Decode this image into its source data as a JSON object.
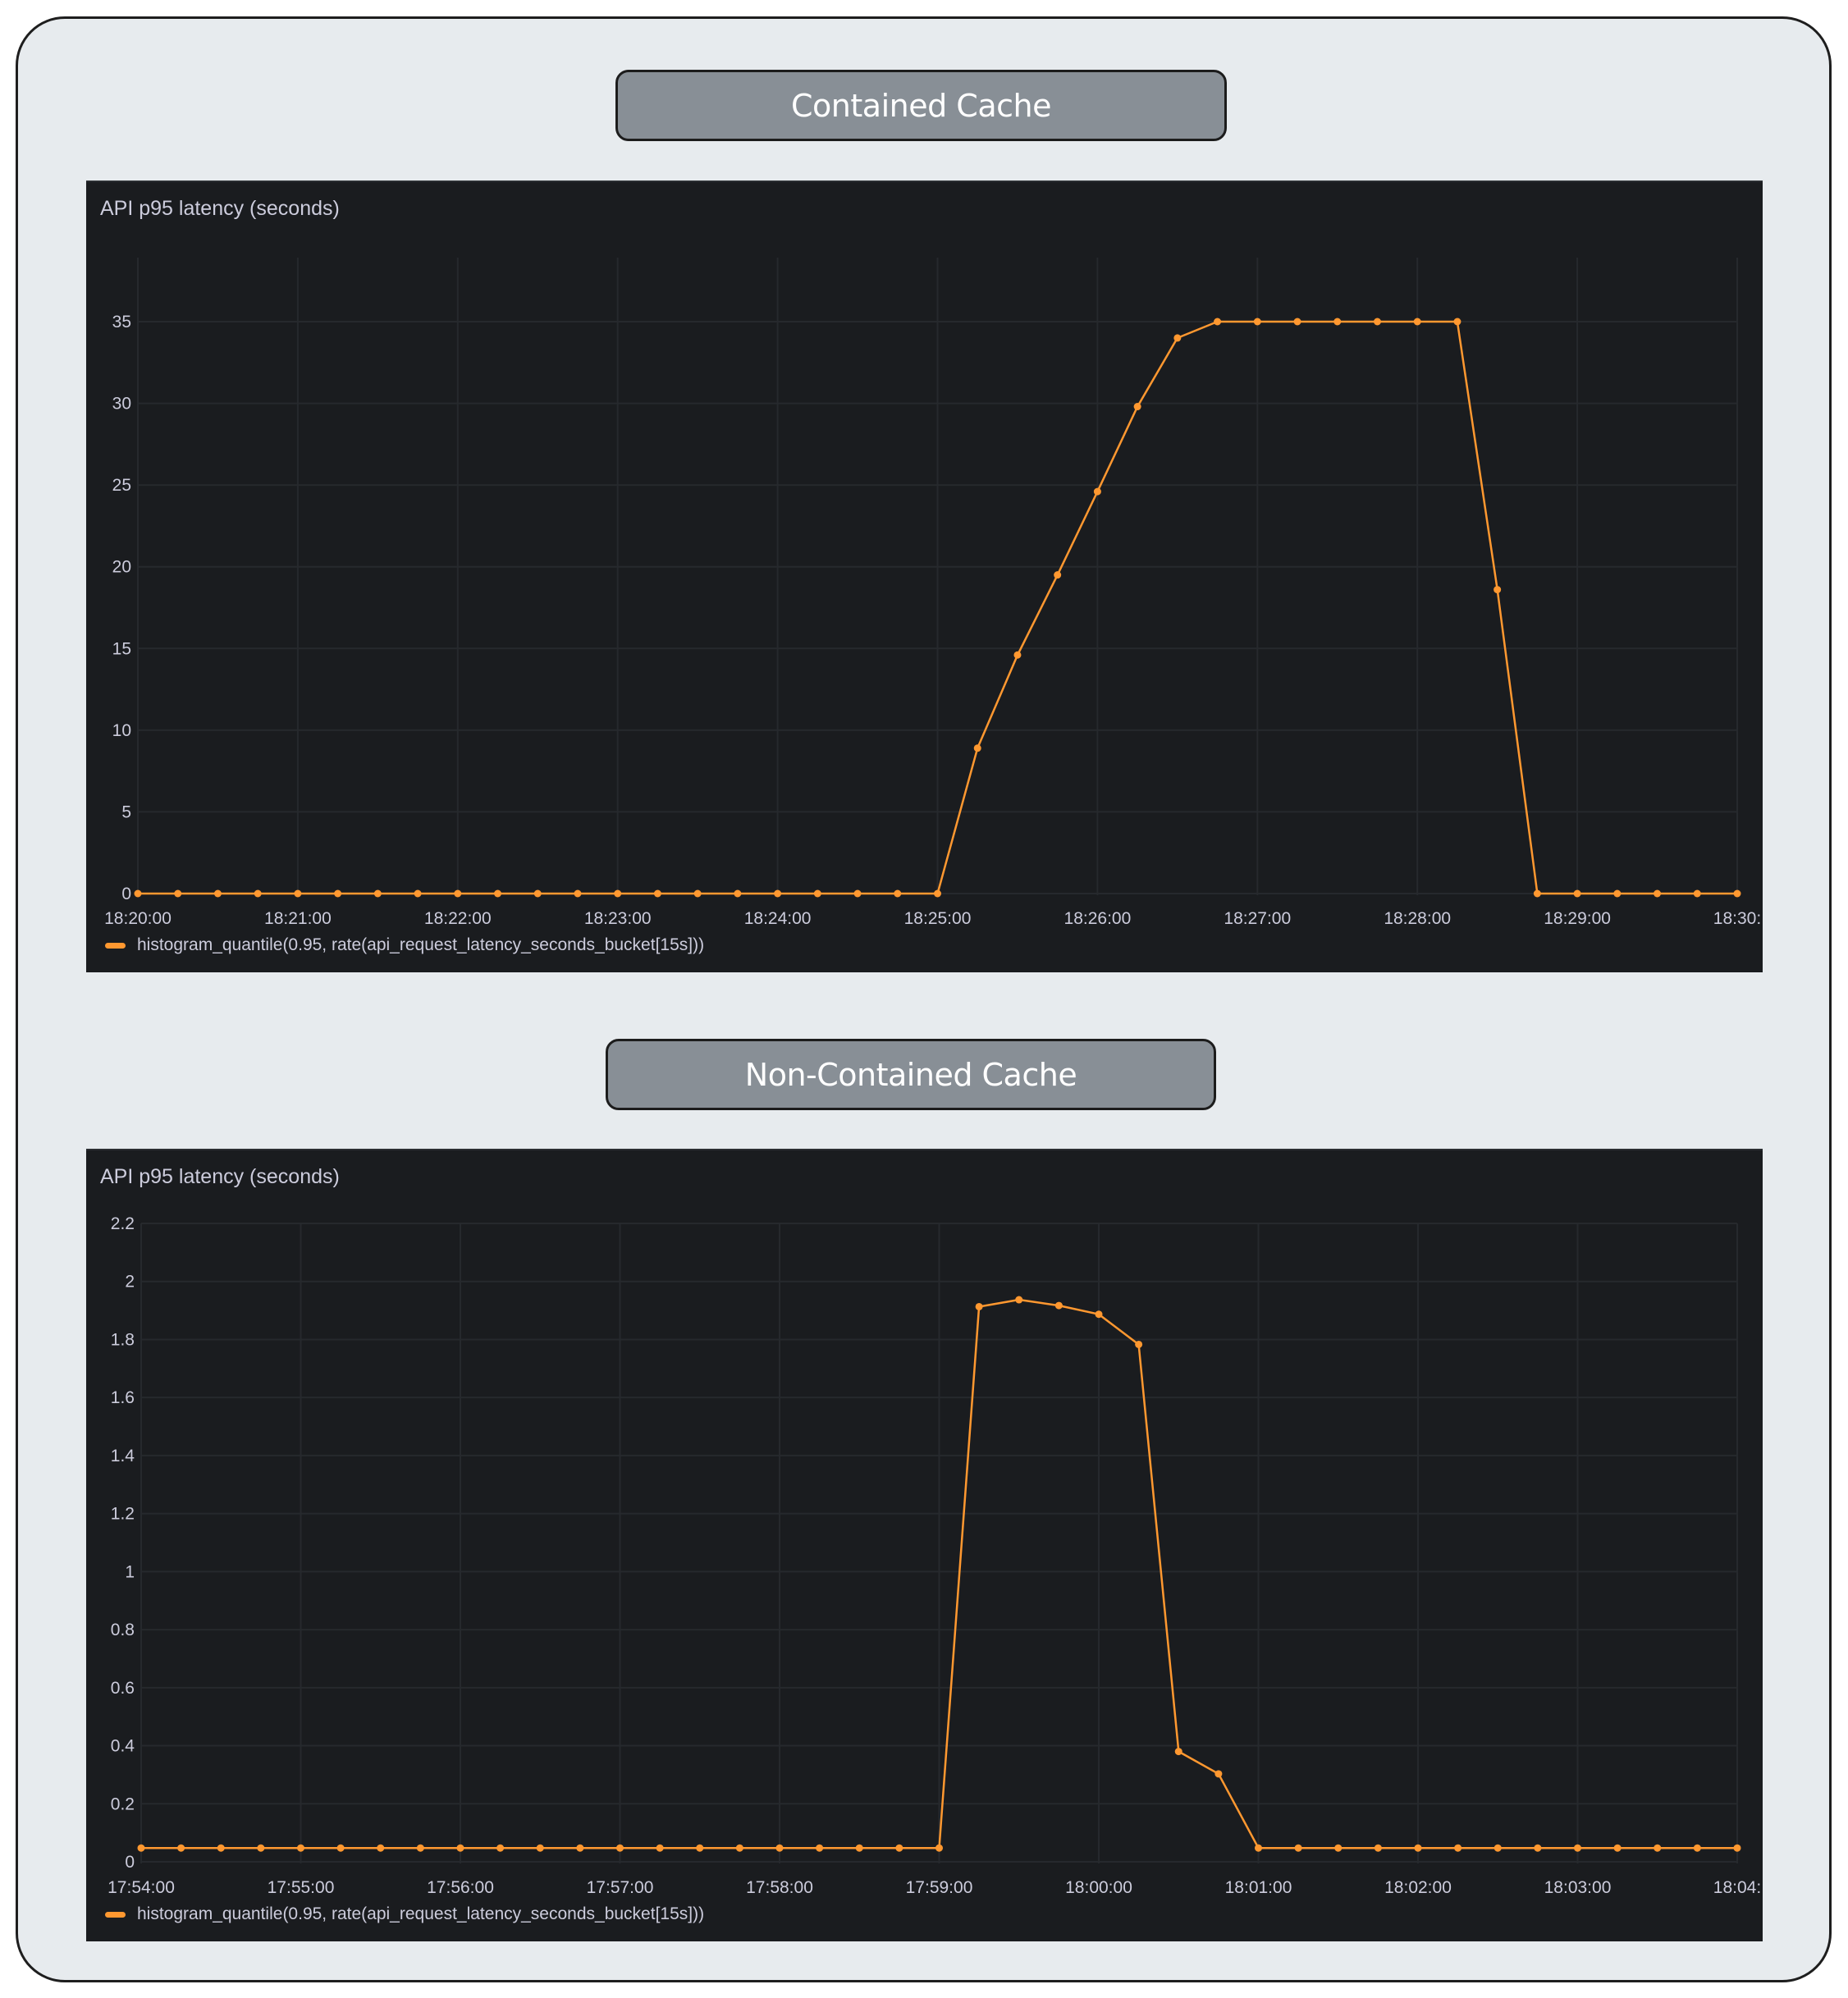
{
  "sections": [
    {
      "header": "Contained Cache",
      "panel_title": "API p95 latency (seconds)",
      "legend": "histogram_quantile(0.95, rate(api_request_latency_seconds_bucket[15s]))"
    },
    {
      "header": "Non-Contained Cache",
      "panel_title": "API p95 latency (seconds)",
      "legend": "histogram_quantile(0.95, rate(api_request_latency_seconds_bucket[15s]))"
    }
  ],
  "colors": {
    "series": "#ff9830",
    "panel_bg": "#1a1c1f",
    "grid": "#26292d",
    "text": "#ccccdc",
    "header_bg": "#888f96",
    "page_bg": "#e7ebee"
  },
  "chart_data": [
    {
      "type": "line",
      "title": "API p95 latency (seconds)",
      "section": "Contained Cache",
      "xlabel": "",
      "ylabel": "",
      "ylim": [
        0,
        38.9
      ],
      "yticks": [
        0,
        5,
        10,
        15,
        20,
        25,
        30,
        35
      ],
      "xtick_labels": [
        "18:20:00",
        "18:21:00",
        "18:22:00",
        "18:23:00",
        "18:24:00",
        "18:25:00",
        "18:26:00",
        "18:27:00",
        "18:28:00",
        "18:29:00",
        "18:30:"
      ],
      "grid": true,
      "legend_position": "bottom-left",
      "x": [
        "18:20:00",
        "18:20:15",
        "18:20:30",
        "18:20:45",
        "18:21:00",
        "18:21:15",
        "18:21:30",
        "18:21:45",
        "18:22:00",
        "18:22:15",
        "18:22:30",
        "18:22:45",
        "18:23:00",
        "18:23:15",
        "18:23:30",
        "18:23:45",
        "18:24:00",
        "18:24:15",
        "18:24:30",
        "18:24:45",
        "18:25:00",
        "18:25:15",
        "18:25:30",
        "18:25:45",
        "18:26:00",
        "18:26:15",
        "18:26:30",
        "18:26:45",
        "18:27:00",
        "18:27:15",
        "18:27:30",
        "18:27:45",
        "18:28:00",
        "18:28:15",
        "18:28:30",
        "18:28:45",
        "18:29:00",
        "18:29:15",
        "18:29:30",
        "18:29:45",
        "18:30:00"
      ],
      "series": [
        {
          "name": "histogram_quantile(0.95, rate(api_request_latency_seconds_bucket[15s]))",
          "values": [
            0,
            0,
            0,
            0,
            0,
            0,
            0,
            0,
            0,
            0,
            0,
            0,
            0,
            0,
            0,
            0,
            0,
            0,
            0,
            0,
            0,
            8.9,
            14.6,
            19.5,
            24.6,
            29.8,
            34.0,
            35,
            35,
            35,
            35,
            35,
            35,
            35,
            18.6,
            0,
            0,
            0,
            0,
            0,
            0
          ]
        }
      ]
    },
    {
      "type": "line",
      "title": "API p95 latency (seconds)",
      "section": "Non-Contained Cache",
      "xlabel": "",
      "ylabel": "",
      "ylim": [
        0,
        2.2
      ],
      "yticks": [
        0,
        0.2,
        0.4,
        0.6,
        0.8,
        1,
        1.2,
        1.4,
        1.6,
        1.8,
        2,
        2.2
      ],
      "xtick_labels": [
        "17:54:00",
        "17:55:00",
        "17:56:00",
        "17:57:00",
        "17:58:00",
        "17:59:00",
        "18:00:00",
        "18:01:00",
        "18:02:00",
        "18:03:00",
        "18:04:"
      ],
      "grid": true,
      "legend_position": "bottom-left",
      "x": [
        "17:54:00",
        "17:54:15",
        "17:54:30",
        "17:54:45",
        "17:55:00",
        "17:55:15",
        "17:55:30",
        "17:55:45",
        "17:56:00",
        "17:56:15",
        "17:56:30",
        "17:56:45",
        "17:57:00",
        "17:57:15",
        "17:57:30",
        "17:57:45",
        "17:58:00",
        "17:58:15",
        "17:58:30",
        "17:58:45",
        "17:59:00",
        "17:59:15",
        "17:59:30",
        "17:59:45",
        "18:00:00",
        "18:00:15",
        "18:00:30",
        "18:00:45",
        "18:01:00",
        "18:01:15",
        "18:01:30",
        "18:01:45",
        "18:02:00",
        "18:02:15",
        "18:02:30",
        "18:02:45",
        "18:03:00",
        "18:03:15",
        "18:03:30",
        "18:03:45",
        "18:04:00"
      ],
      "series": [
        {
          "name": "histogram_quantile(0.95, rate(api_request_latency_seconds_bucket[15s]))",
          "values": [
            0.0475,
            0.0475,
            0.0475,
            0.0475,
            0.0475,
            0.0475,
            0.0475,
            0.0475,
            0.0475,
            0.0475,
            0.0475,
            0.0475,
            0.0475,
            0.0475,
            0.0475,
            0.0475,
            0.0475,
            0.0475,
            0.0475,
            0.0475,
            0.0475,
            1.913,
            1.937,
            1.917,
            1.887,
            1.783,
            0.38,
            0.303,
            0.0475,
            0.0475,
            0.0475,
            0.0475,
            0.0475,
            0.0475,
            0.0475,
            0.0475,
            0.0475,
            0.0475,
            0.0475,
            0.0475,
            0.0475
          ]
        }
      ]
    }
  ]
}
